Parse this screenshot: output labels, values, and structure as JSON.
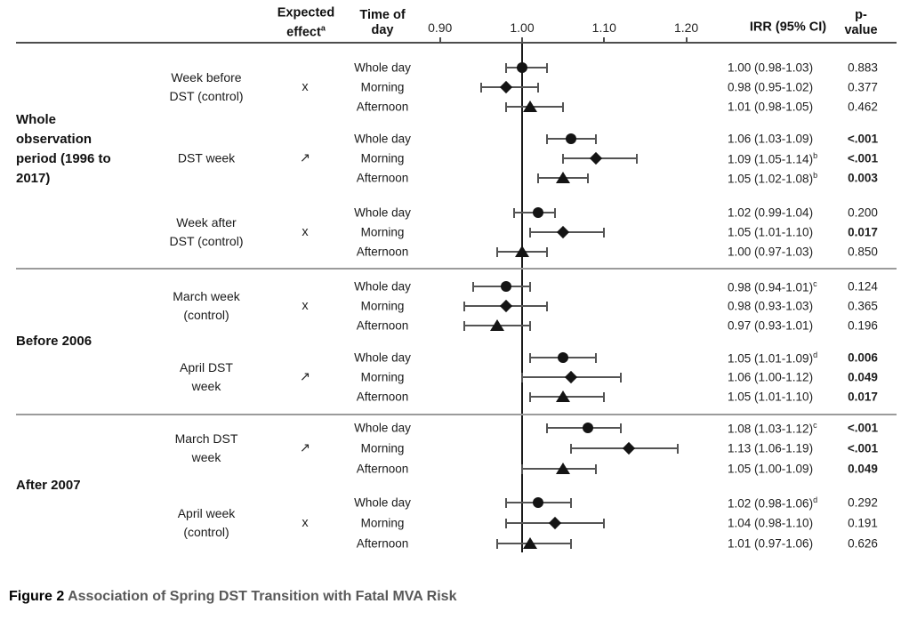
{
  "header": {
    "expected_effect": {
      "lines": [
        "Expected",
        "effect"
      ],
      "superscript": "a"
    },
    "time_of_day": {
      "lines": [
        "Time of",
        "day"
      ]
    },
    "irr_label": "IRR (95% CI)",
    "p_label": {
      "lines": [
        "p-",
        "value"
      ]
    },
    "axis_ticks": [
      "0.90",
      "1.00",
      "1.10",
      "1.20"
    ]
  },
  "caption": {
    "prefix": "Figure 2",
    "title": "Association of Spring DST Transition with Fatal MVA Risk"
  },
  "colors": {
    "marker": "#141414",
    "error_bar": "#545454",
    "header_rule": "#4d4d4d",
    "section_divider": "#9b9b9b",
    "reference_line": "#1a1a1a",
    "caption_title": "#595959"
  },
  "chart_data": {
    "type": "forest",
    "x_axis_label": "",
    "xticks": [
      0.9,
      1.0,
      1.1,
      1.2
    ],
    "xlim": [
      0.86,
      1.24
    ],
    "reference_line": 1.0,
    "marker_legend": {
      "Whole day": "circle",
      "Morning": "diamond",
      "Afternoon": "triangle"
    },
    "groups": [
      {
        "label_lines": [
          "Whole",
          "observation",
          "period (1996 to",
          "2017)"
        ],
        "subgroups": [
          {
            "label_lines": [
              "Week before",
              "DST (control)"
            ],
            "expected": "x",
            "rows": [
              {
                "time": "Whole day",
                "marker": "circle",
                "irr": 1.0,
                "lo": 0.98,
                "hi": 1.03,
                "irr_text": "1.00 (0.98-1.03)",
                "sup": "",
                "p": "0.883",
                "p_bold": false
              },
              {
                "time": "Morning",
                "marker": "diamond",
                "irr": 0.98,
                "lo": 0.95,
                "hi": 1.02,
                "irr_text": "0.98 (0.95-1.02)",
                "sup": "",
                "p": "0.377",
                "p_bold": false
              },
              {
                "time": "Afternoon",
                "marker": "triangle",
                "irr": 1.01,
                "lo": 0.98,
                "hi": 1.05,
                "irr_text": "1.01 (0.98-1.05)",
                "sup": "",
                "p": "0.462",
                "p_bold": false
              }
            ]
          },
          {
            "label_lines": [
              "DST week"
            ],
            "expected": "↗",
            "rows": [
              {
                "time": "Whole day",
                "marker": "circle",
                "irr": 1.06,
                "lo": 1.03,
                "hi": 1.09,
                "irr_text": "1.06 (1.03-1.09)",
                "sup": "",
                "p": "<.001",
                "p_bold": true
              },
              {
                "time": "Morning",
                "marker": "diamond",
                "irr": 1.09,
                "lo": 1.05,
                "hi": 1.14,
                "irr_text": "1.09 (1.05-1.14)",
                "sup": "b",
                "p": "<.001",
                "p_bold": true
              },
              {
                "time": "Afternoon",
                "marker": "triangle",
                "irr": 1.05,
                "lo": 1.02,
                "hi": 1.08,
                "irr_text": "1.05 (1.02-1.08)",
                "sup": "b",
                "p": "0.003",
                "p_bold": true
              }
            ]
          },
          {
            "label_lines": [
              "Week after",
              "DST (control)"
            ],
            "expected": "x",
            "rows": [
              {
                "time": "Whole day",
                "marker": "circle",
                "irr": 1.02,
                "lo": 0.99,
                "hi": 1.04,
                "irr_text": "1.02 (0.99-1.04)",
                "sup": "",
                "p": "0.200",
                "p_bold": false
              },
              {
                "time": "Morning",
                "marker": "diamond",
                "irr": 1.05,
                "lo": 1.01,
                "hi": 1.1,
                "irr_text": "1.05 (1.01-1.10)",
                "sup": "",
                "p": "0.017",
                "p_bold": true
              },
              {
                "time": "Afternoon",
                "marker": "triangle",
                "irr": 1.0,
                "lo": 0.97,
                "hi": 1.03,
                "irr_text": "1.00 (0.97-1.03)",
                "sup": "",
                "p": "0.850",
                "p_bold": false
              }
            ]
          }
        ]
      },
      {
        "label_lines": [
          "Before 2006"
        ],
        "subgroups": [
          {
            "label_lines": [
              "March week",
              "(control)"
            ],
            "expected": "x",
            "rows": [
              {
                "time": "Whole day",
                "marker": "circle",
                "irr": 0.98,
                "lo": 0.94,
                "hi": 1.01,
                "irr_text": "0.98 (0.94-1.01)",
                "sup": "c",
                "p": "0.124",
                "p_bold": false
              },
              {
                "time": "Morning",
                "marker": "diamond",
                "irr": 0.98,
                "lo": 0.93,
                "hi": 1.03,
                "irr_text": "0.98 (0.93-1.03)",
                "sup": "",
                "p": "0.365",
                "p_bold": false
              },
              {
                "time": "Afternoon",
                "marker": "triangle",
                "irr": 0.97,
                "lo": 0.93,
                "hi": 1.01,
                "irr_text": "0.97 (0.93-1.01)",
                "sup": "",
                "p": "0.196",
                "p_bold": false
              }
            ]
          },
          {
            "label_lines": [
              "April DST",
              "week"
            ],
            "expected": "↗",
            "rows": [
              {
                "time": "Whole day",
                "marker": "circle",
                "irr": 1.05,
                "lo": 1.01,
                "hi": 1.09,
                "irr_text": "1.05 (1.01-1.09)",
                "sup": "d",
                "p": "0.006",
                "p_bold": true
              },
              {
                "time": "Morning",
                "marker": "diamond",
                "irr": 1.06,
                "lo": 1.0,
                "hi": 1.12,
                "irr_text": "1.06 (1.00-1.12)",
                "sup": "",
                "p": "0.049",
                "p_bold": true
              },
              {
                "time": "Afternoon",
                "marker": "triangle",
                "irr": 1.05,
                "lo": 1.01,
                "hi": 1.1,
                "irr_text": "1.05 (1.01-1.10)",
                "sup": "",
                "p": "0.017",
                "p_bold": true
              }
            ]
          }
        ]
      },
      {
        "label_lines": [
          "After 2007"
        ],
        "subgroups": [
          {
            "label_lines": [
              "March DST",
              "week"
            ],
            "expected": "↗",
            "rows": [
              {
                "time": "Whole day",
                "marker": "circle",
                "irr": 1.08,
                "lo": 1.03,
                "hi": 1.12,
                "irr_text": "1.08 (1.03-1.12)",
                "sup": "c",
                "p": "<.001",
                "p_bold": true
              },
              {
                "time": "Morning",
                "marker": "diamond",
                "irr": 1.13,
                "lo": 1.06,
                "hi": 1.19,
                "irr_text": "1.13 (1.06-1.19)",
                "sup": "",
                "p": "<.001",
                "p_bold": true
              },
              {
                "time": "Afternoon",
                "marker": "triangle",
                "irr": 1.05,
                "lo": 1.0,
                "hi": 1.09,
                "irr_text": "1.05 (1.00-1.09)",
                "sup": "",
                "p": "0.049",
                "p_bold": true
              }
            ]
          },
          {
            "label_lines": [
              "April week",
              "(control)"
            ],
            "expected": "x",
            "rows": [
              {
                "time": "Whole day",
                "marker": "circle",
                "irr": 1.02,
                "lo": 0.98,
                "hi": 1.06,
                "irr_text": "1.02 (0.98-1.06)",
                "sup": "d",
                "p": "0.292",
                "p_bold": false
              },
              {
                "time": "Morning",
                "marker": "diamond",
                "irr": 1.04,
                "lo": 0.98,
                "hi": 1.1,
                "irr_text": "1.04 (0.98-1.10)",
                "sup": "",
                "p": "0.191",
                "p_bold": false
              },
              {
                "time": "Afternoon",
                "marker": "triangle",
                "irr": 1.01,
                "lo": 0.97,
                "hi": 1.06,
                "irr_text": "1.01 (0.97-1.06)",
                "sup": "",
                "p": "0.626",
                "p_bold": false
              }
            ]
          }
        ]
      }
    ]
  }
}
